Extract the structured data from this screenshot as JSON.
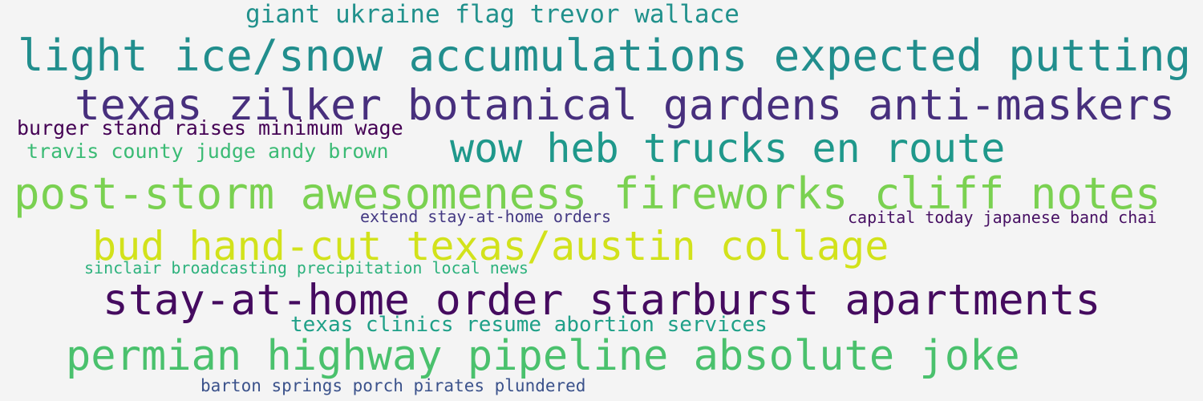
{
  "word_cloud": {
    "phrases": [
      {
        "id": "p01",
        "text": "giant ukraine flag trevor wallace",
        "color": "#21918c"
      },
      {
        "id": "p02",
        "text": "light ice/snow accumulations expected putting",
        "color": "#218e8d"
      },
      {
        "id": "p03",
        "text": "texas zilker botanical gardens anti-maskers",
        "color": "#472f7d"
      },
      {
        "id": "p04",
        "text": "burger stand raises minimum wage",
        "color": "#440154"
      },
      {
        "id": "p05",
        "text": "travis county judge andy brown",
        "color": "#3bbb75"
      },
      {
        "id": "p06",
        "text": "wow heb trucks en route",
        "color": "#1f988b"
      },
      {
        "id": "p07",
        "text": "post-storm awesomeness fireworks cliff notes",
        "color": "#7ad151"
      },
      {
        "id": "p08",
        "text": "extend stay-at-home orders",
        "color": "#443983"
      },
      {
        "id": "p09",
        "text": "capital today japanese band chai",
        "color": "#471063"
      },
      {
        "id": "p10",
        "text": "bud hand-cut texas/austin collage",
        "color": "#d2e21b"
      },
      {
        "id": "p11",
        "text": "sinclair broadcasting precipitation local news",
        "color": "#2db27d"
      },
      {
        "id": "p12",
        "text": "stay-at-home order starburst apartments",
        "color": "#450b5f"
      },
      {
        "id": "p13",
        "text": "texas clinics resume abortion services",
        "color": "#1fa088"
      },
      {
        "id": "p14",
        "text": "permian highway pipeline absolute joke",
        "color": "#4ac16d"
      },
      {
        "id": "p15",
        "text": "barton springs porch pirates plundered",
        "color": "#3b528b"
      }
    ]
  }
}
